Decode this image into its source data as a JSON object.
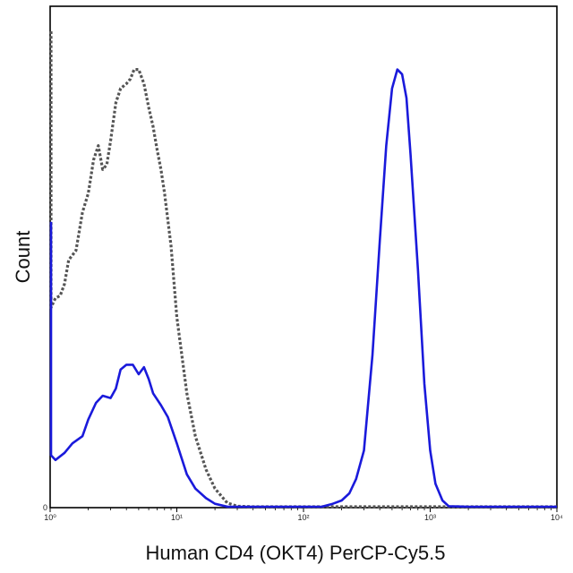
{
  "chart_data": {
    "type": "line",
    "xlabel": "Human CD4 (OKT4) PerCP-Cy5.5",
    "ylabel": "Count",
    "x_scale": "log",
    "xlim": [
      1,
      10000
    ],
    "ylim": [
      0,
      100
    ],
    "x_ticks": [
      {
        "value": 1,
        "label": "10⁰"
      },
      {
        "value": 10,
        "label": "10¹"
      },
      {
        "value": 100,
        "label": "10²"
      },
      {
        "value": 1000,
        "label": "10³"
      },
      {
        "value": 10000,
        "label": "10⁴"
      }
    ],
    "y_ticks": [
      {
        "value": 0,
        "label": "0"
      }
    ],
    "grid": false,
    "legend": "none",
    "series": [
      {
        "style": "dotted",
        "color": "#555555",
        "points": [
          [
            0.95,
            100
          ],
          [
            0.97,
            75
          ],
          [
            1.0,
            42
          ],
          [
            1.1,
            44
          ],
          [
            1.2,
            44.5
          ],
          [
            1.3,
            47
          ],
          [
            1.4,
            52
          ],
          [
            1.5,
            53
          ],
          [
            1.6,
            54
          ],
          [
            1.8,
            62
          ],
          [
            2.0,
            66
          ],
          [
            2.2,
            73
          ],
          [
            2.4,
            76
          ],
          [
            2.6,
            71
          ],
          [
            2.8,
            72
          ],
          [
            3.0,
            77
          ],
          [
            3.3,
            85
          ],
          [
            3.6,
            88
          ],
          [
            4.0,
            89
          ],
          [
            4.3,
            90
          ],
          [
            4.6,
            92
          ],
          [
            5.0,
            92
          ],
          [
            5.5,
            89
          ],
          [
            6.0,
            84
          ],
          [
            6.5,
            80
          ],
          [
            7.0,
            75
          ],
          [
            7.5,
            71
          ],
          [
            8.0,
            66
          ],
          [
            9.0,
            55
          ],
          [
            10,
            40
          ],
          [
            12,
            24
          ],
          [
            14,
            15
          ],
          [
            17,
            8
          ],
          [
            20,
            4
          ],
          [
            25,
            1
          ],
          [
            30,
            0.3
          ],
          [
            40,
            0
          ],
          [
            10000,
            0
          ]
        ]
      },
      {
        "style": "solid",
        "color": "#1a1adb",
        "points": [
          [
            0.95,
            60
          ],
          [
            1.0,
            11
          ],
          [
            1.1,
            10
          ],
          [
            1.3,
            11.5
          ],
          [
            1.5,
            13.5
          ],
          [
            1.8,
            15
          ],
          [
            2.0,
            18.5
          ],
          [
            2.3,
            22
          ],
          [
            2.6,
            23.5
          ],
          [
            3.0,
            23
          ],
          [
            3.3,
            25
          ],
          [
            3.6,
            29
          ],
          [
            4.0,
            30
          ],
          [
            4.5,
            30
          ],
          [
            5.0,
            28
          ],
          [
            5.5,
            29.5
          ],
          [
            6.0,
            27
          ],
          [
            6.5,
            24
          ],
          [
            7.5,
            21.5
          ],
          [
            8.5,
            19
          ],
          [
            10,
            13.5
          ],
          [
            12,
            7
          ],
          [
            14,
            4
          ],
          [
            17,
            2
          ],
          [
            20,
            0.8
          ],
          [
            25,
            0.2
          ],
          [
            40,
            0
          ],
          [
            100,
            0
          ],
          [
            140,
            0.2
          ],
          [
            170,
            0.8
          ],
          [
            200,
            1.5
          ],
          [
            230,
            3
          ],
          [
            260,
            6
          ],
          [
            300,
            12
          ],
          [
            350,
            32
          ],
          [
            400,
            56
          ],
          [
            450,
            76
          ],
          [
            500,
            88
          ],
          [
            550,
            92
          ],
          [
            600,
            91
          ],
          [
            650,
            86
          ],
          [
            700,
            74
          ],
          [
            800,
            50
          ],
          [
            900,
            26
          ],
          [
            1000,
            12
          ],
          [
            1100,
            5
          ],
          [
            1250,
            1.5
          ],
          [
            1400,
            0.3
          ],
          [
            2000,
            0
          ],
          [
            10000,
            0
          ]
        ]
      }
    ]
  }
}
